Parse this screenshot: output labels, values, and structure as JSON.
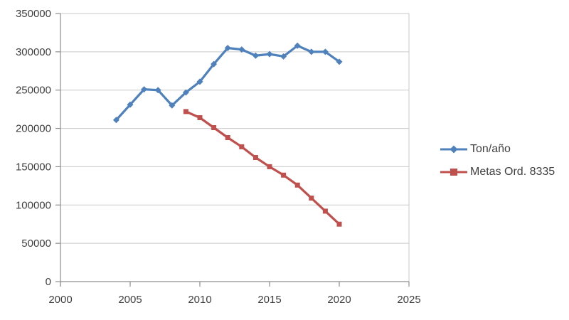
{
  "chart_data": {
    "type": "line",
    "title": "",
    "xlabel": "",
    "ylabel": "",
    "xlim": [
      2000,
      2025
    ],
    "ylim": [
      0,
      350000
    ],
    "x_ticks": [
      2000,
      2005,
      2010,
      2015,
      2020,
      2025
    ],
    "y_ticks": [
      0,
      50000,
      100000,
      150000,
      200000,
      250000,
      300000,
      350000
    ],
    "grid": "horizontal",
    "legend_position": "right",
    "series": [
      {
        "name": "Ton/año",
        "color": "#4F81BD",
        "marker": "diamond",
        "x": [
          2004,
          2005,
          2006,
          2007,
          2008,
          2009,
          2010,
          2011,
          2012,
          2013,
          2014,
          2015,
          2016,
          2017,
          2018,
          2019,
          2020
        ],
        "values": [
          211000,
          231000,
          251000,
          250000,
          230000,
          247000,
          261000,
          284000,
          305000,
          303000,
          295000,
          297000,
          294000,
          308000,
          300000,
          300000,
          287000
        ]
      },
      {
        "name": "Metas Ord. 8335",
        "color": "#C0504D",
        "marker": "square",
        "x": [
          2009,
          2010,
          2011,
          2012,
          2013,
          2014,
          2015,
          2016,
          2017,
          2018,
          2019,
          2020
        ],
        "values": [
          222000,
          214000,
          201000,
          188000,
          176000,
          162000,
          150000,
          139000,
          126000,
          109000,
          92000,
          75000
        ]
      }
    ],
    "colors": {
      "background": "#FFFFFF",
      "gridline": "#C9C9C9",
      "axis": "#8E8E8E",
      "tick_label": "#404040",
      "legend_text": "#404040"
    }
  }
}
